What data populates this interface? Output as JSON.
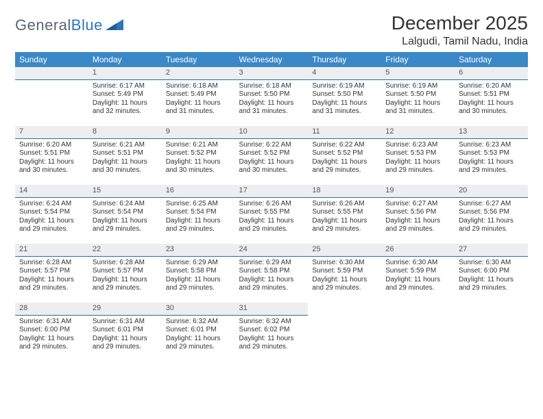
{
  "brand": {
    "name_gray": "General",
    "name_blue": "Blue"
  },
  "header": {
    "month_title": "December 2025",
    "location": "Lalgudi, Tamil Nadu, India"
  },
  "colors": {
    "header_bg": "#3b88c7",
    "header_text": "#ffffff",
    "daynum_bg": "#eceef0",
    "daynum_border": "#2f6aa0",
    "body_text": "#333333",
    "logo_gray": "#5c6670",
    "logo_blue": "#2a77bb",
    "page_bg": "#ffffff"
  },
  "fonts": {
    "title_pt": 28,
    "location_pt": 16,
    "dayheader_pt": 12,
    "daynum_pt": 11,
    "cell_pt": 10
  },
  "weekdays": [
    "Sunday",
    "Monday",
    "Tuesday",
    "Wednesday",
    "Thursday",
    "Friday",
    "Saturday"
  ],
  "first_weekday_index": 1,
  "days": [
    {
      "n": "1",
      "sunrise": "Sunrise: 6:17 AM",
      "sunset": "Sunset: 5:49 PM",
      "dl1": "Daylight: 11 hours",
      "dl2": "and 32 minutes."
    },
    {
      "n": "2",
      "sunrise": "Sunrise: 6:18 AM",
      "sunset": "Sunset: 5:49 PM",
      "dl1": "Daylight: 11 hours",
      "dl2": "and 31 minutes."
    },
    {
      "n": "3",
      "sunrise": "Sunrise: 6:18 AM",
      "sunset": "Sunset: 5:50 PM",
      "dl1": "Daylight: 11 hours",
      "dl2": "and 31 minutes."
    },
    {
      "n": "4",
      "sunrise": "Sunrise: 6:19 AM",
      "sunset": "Sunset: 5:50 PM",
      "dl1": "Daylight: 11 hours",
      "dl2": "and 31 minutes."
    },
    {
      "n": "5",
      "sunrise": "Sunrise: 6:19 AM",
      "sunset": "Sunset: 5:50 PM",
      "dl1": "Daylight: 11 hours",
      "dl2": "and 31 minutes."
    },
    {
      "n": "6",
      "sunrise": "Sunrise: 6:20 AM",
      "sunset": "Sunset: 5:51 PM",
      "dl1": "Daylight: 11 hours",
      "dl2": "and 30 minutes."
    },
    {
      "n": "7",
      "sunrise": "Sunrise: 6:20 AM",
      "sunset": "Sunset: 5:51 PM",
      "dl1": "Daylight: 11 hours",
      "dl2": "and 30 minutes."
    },
    {
      "n": "8",
      "sunrise": "Sunrise: 6:21 AM",
      "sunset": "Sunset: 5:51 PM",
      "dl1": "Daylight: 11 hours",
      "dl2": "and 30 minutes."
    },
    {
      "n": "9",
      "sunrise": "Sunrise: 6:21 AM",
      "sunset": "Sunset: 5:52 PM",
      "dl1": "Daylight: 11 hours",
      "dl2": "and 30 minutes."
    },
    {
      "n": "10",
      "sunrise": "Sunrise: 6:22 AM",
      "sunset": "Sunset: 5:52 PM",
      "dl1": "Daylight: 11 hours",
      "dl2": "and 30 minutes."
    },
    {
      "n": "11",
      "sunrise": "Sunrise: 6:22 AM",
      "sunset": "Sunset: 5:52 PM",
      "dl1": "Daylight: 11 hours",
      "dl2": "and 29 minutes."
    },
    {
      "n": "12",
      "sunrise": "Sunrise: 6:23 AM",
      "sunset": "Sunset: 5:53 PM",
      "dl1": "Daylight: 11 hours",
      "dl2": "and 29 minutes."
    },
    {
      "n": "13",
      "sunrise": "Sunrise: 6:23 AM",
      "sunset": "Sunset: 5:53 PM",
      "dl1": "Daylight: 11 hours",
      "dl2": "and 29 minutes."
    },
    {
      "n": "14",
      "sunrise": "Sunrise: 6:24 AM",
      "sunset": "Sunset: 5:54 PM",
      "dl1": "Daylight: 11 hours",
      "dl2": "and 29 minutes."
    },
    {
      "n": "15",
      "sunrise": "Sunrise: 6:24 AM",
      "sunset": "Sunset: 5:54 PM",
      "dl1": "Daylight: 11 hours",
      "dl2": "and 29 minutes."
    },
    {
      "n": "16",
      "sunrise": "Sunrise: 6:25 AM",
      "sunset": "Sunset: 5:54 PM",
      "dl1": "Daylight: 11 hours",
      "dl2": "and 29 minutes."
    },
    {
      "n": "17",
      "sunrise": "Sunrise: 6:26 AM",
      "sunset": "Sunset: 5:55 PM",
      "dl1": "Daylight: 11 hours",
      "dl2": "and 29 minutes."
    },
    {
      "n": "18",
      "sunrise": "Sunrise: 6:26 AM",
      "sunset": "Sunset: 5:55 PM",
      "dl1": "Daylight: 11 hours",
      "dl2": "and 29 minutes."
    },
    {
      "n": "19",
      "sunrise": "Sunrise: 6:27 AM",
      "sunset": "Sunset: 5:56 PM",
      "dl1": "Daylight: 11 hours",
      "dl2": "and 29 minutes."
    },
    {
      "n": "20",
      "sunrise": "Sunrise: 6:27 AM",
      "sunset": "Sunset: 5:56 PM",
      "dl1": "Daylight: 11 hours",
      "dl2": "and 29 minutes."
    },
    {
      "n": "21",
      "sunrise": "Sunrise: 6:28 AM",
      "sunset": "Sunset: 5:57 PM",
      "dl1": "Daylight: 11 hours",
      "dl2": "and 29 minutes."
    },
    {
      "n": "22",
      "sunrise": "Sunrise: 6:28 AM",
      "sunset": "Sunset: 5:57 PM",
      "dl1": "Daylight: 11 hours",
      "dl2": "and 29 minutes."
    },
    {
      "n": "23",
      "sunrise": "Sunrise: 6:29 AM",
      "sunset": "Sunset: 5:58 PM",
      "dl1": "Daylight: 11 hours",
      "dl2": "and 29 minutes."
    },
    {
      "n": "24",
      "sunrise": "Sunrise: 6:29 AM",
      "sunset": "Sunset: 5:58 PM",
      "dl1": "Daylight: 11 hours",
      "dl2": "and 29 minutes."
    },
    {
      "n": "25",
      "sunrise": "Sunrise: 6:30 AM",
      "sunset": "Sunset: 5:59 PM",
      "dl1": "Daylight: 11 hours",
      "dl2": "and 29 minutes."
    },
    {
      "n": "26",
      "sunrise": "Sunrise: 6:30 AM",
      "sunset": "Sunset: 5:59 PM",
      "dl1": "Daylight: 11 hours",
      "dl2": "and 29 minutes."
    },
    {
      "n": "27",
      "sunrise": "Sunrise: 6:30 AM",
      "sunset": "Sunset: 6:00 PM",
      "dl1": "Daylight: 11 hours",
      "dl2": "and 29 minutes."
    },
    {
      "n": "28",
      "sunrise": "Sunrise: 6:31 AM",
      "sunset": "Sunset: 6:00 PM",
      "dl1": "Daylight: 11 hours",
      "dl2": "and 29 minutes."
    },
    {
      "n": "29",
      "sunrise": "Sunrise: 6:31 AM",
      "sunset": "Sunset: 6:01 PM",
      "dl1": "Daylight: 11 hours",
      "dl2": "and 29 minutes."
    },
    {
      "n": "30",
      "sunrise": "Sunrise: 6:32 AM",
      "sunset": "Sunset: 6:01 PM",
      "dl1": "Daylight: 11 hours",
      "dl2": "and 29 minutes."
    },
    {
      "n": "31",
      "sunrise": "Sunrise: 6:32 AM",
      "sunset": "Sunset: 6:02 PM",
      "dl1": "Daylight: 11 hours",
      "dl2": "and 29 minutes."
    }
  ]
}
